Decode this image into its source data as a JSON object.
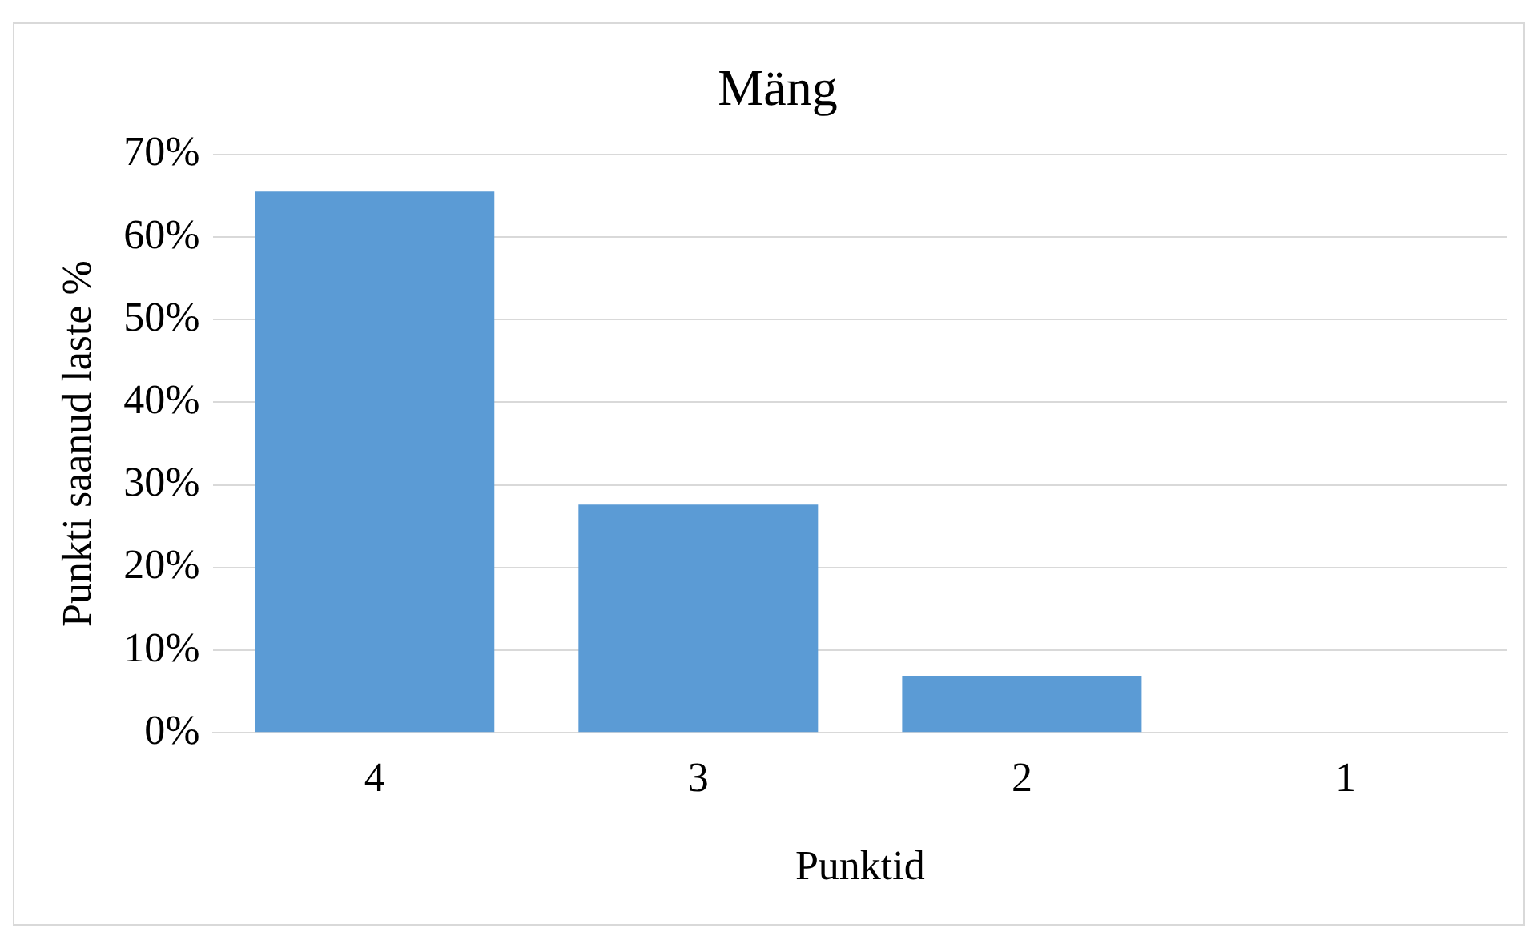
{
  "chart_data": {
    "type": "bar",
    "title": "Mäng",
    "xlabel": "Punktid",
    "ylabel": "Punkti saanud laste %",
    "categories": [
      "4",
      "3",
      "2",
      "1"
    ],
    "values": [
      65.5,
      27.6,
      6.9,
      0
    ],
    "color": "#5b9bd5",
    "ylim": [
      0,
      70
    ],
    "yticks": [
      {
        "value": 0,
        "label": "0%"
      },
      {
        "value": 10,
        "label": "10%"
      },
      {
        "value": 20,
        "label": "20%"
      },
      {
        "value": 30,
        "label": "30%"
      },
      {
        "value": 40,
        "label": "40%"
      },
      {
        "value": 50,
        "label": "50%"
      },
      {
        "value": 60,
        "label": "60%"
      },
      {
        "value": 70,
        "label": "70%"
      }
    ],
    "grid": "y",
    "legend": false
  }
}
